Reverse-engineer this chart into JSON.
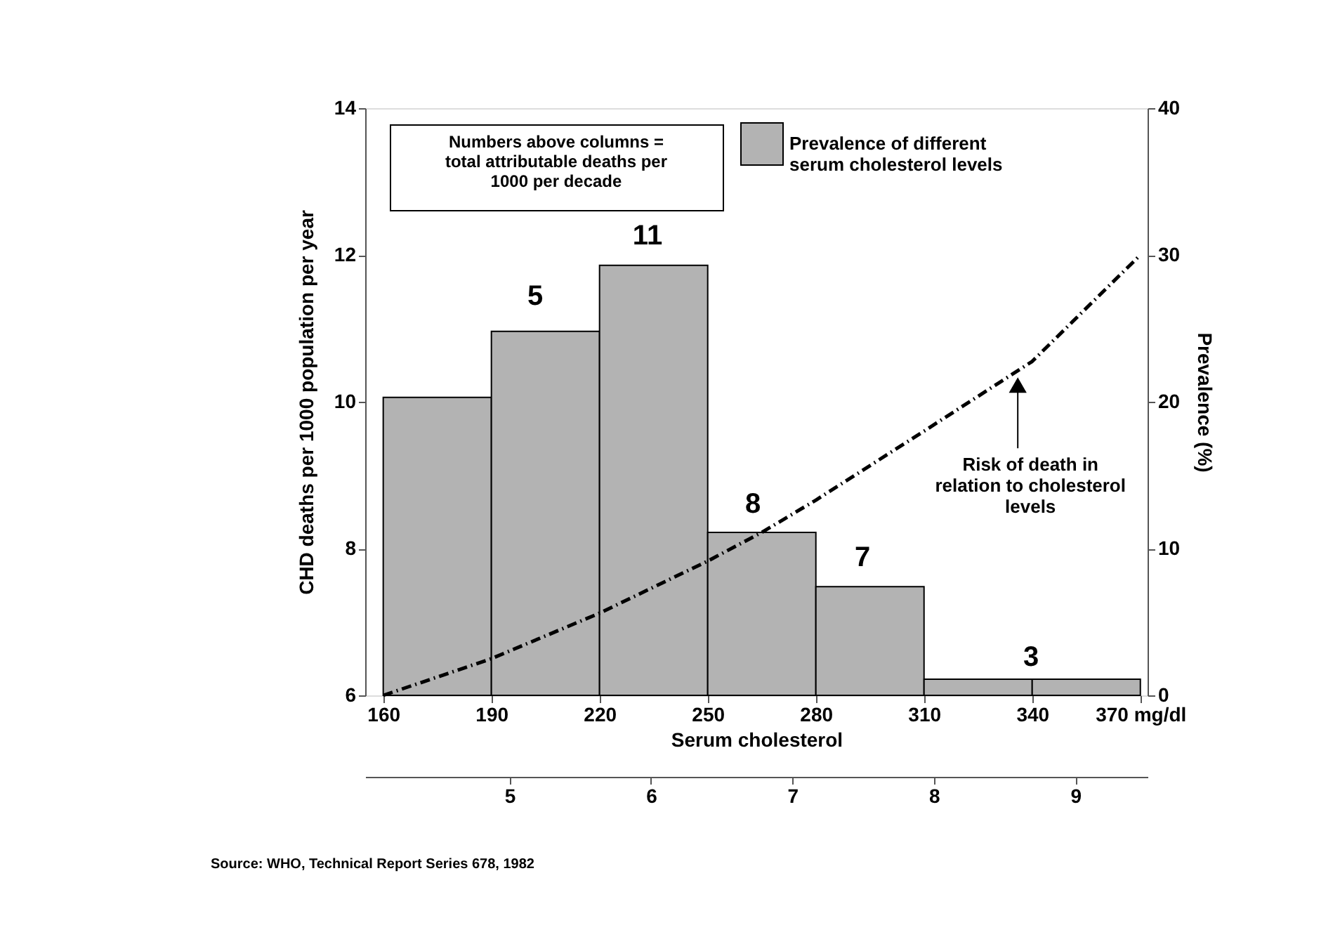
{
  "chart_data": {
    "type": "histogram",
    "xlabel": "Serum cholesterol",
    "ylabel": "CHD deaths per 1000 population per year",
    "y2label": "Prevalence (%)",
    "xlim": [
      155,
      372
    ],
    "xticks": [
      160,
      190,
      220,
      250,
      280,
      310,
      340,
      {
        "value": 370,
        "label": "370 mg/dl"
      }
    ],
    "ylim": [
      6,
      14
    ],
    "yticks": [
      6,
      8,
      10,
      12,
      14
    ],
    "y2lim": [
      0,
      40
    ],
    "y2ticks": [
      0,
      10,
      20,
      30,
      40
    ],
    "x2lim": [
      3.98,
      9.51
    ],
    "x2ticks": [
      5,
      6,
      7,
      8,
      9
    ],
    "grid": false,
    "legend": "top right",
    "series": [
      {
        "name": "Prevalence of different\nserum cholesterol levels",
        "axis": "y2",
        "color": "#b3b3b3",
        "bins": [
          160,
          190,
          220,
          250,
          280,
          310,
          340,
          370
        ],
        "values": [
          20.3,
          24.8,
          29.3,
          11.1,
          7.4,
          1.1,
          1.1
        ]
      },
      {
        "type": "line",
        "color": "#000000",
        "line_style": "dashed",
        "x": [
          160,
          190,
          220,
          250,
          265,
          280,
          310,
          340,
          370
        ],
        "values": [
          6.0,
          6.5,
          7.12,
          7.83,
          8.22,
          8.66,
          9.6,
          10.55,
          12.0
        ]
      }
    ],
    "annotations": [
      "Numbers above columns =\ntotal attributable deaths per\n1000 per decade",
      "Source:  WHO, Technical Report Series 678, 1982",
      "5",
      "11",
      "8",
      "7",
      "3",
      {
        "text": "Risk of death in\nrelation to cholesterol\nlevels",
        "x": 336,
        "y": 10.4
      }
    ]
  }
}
